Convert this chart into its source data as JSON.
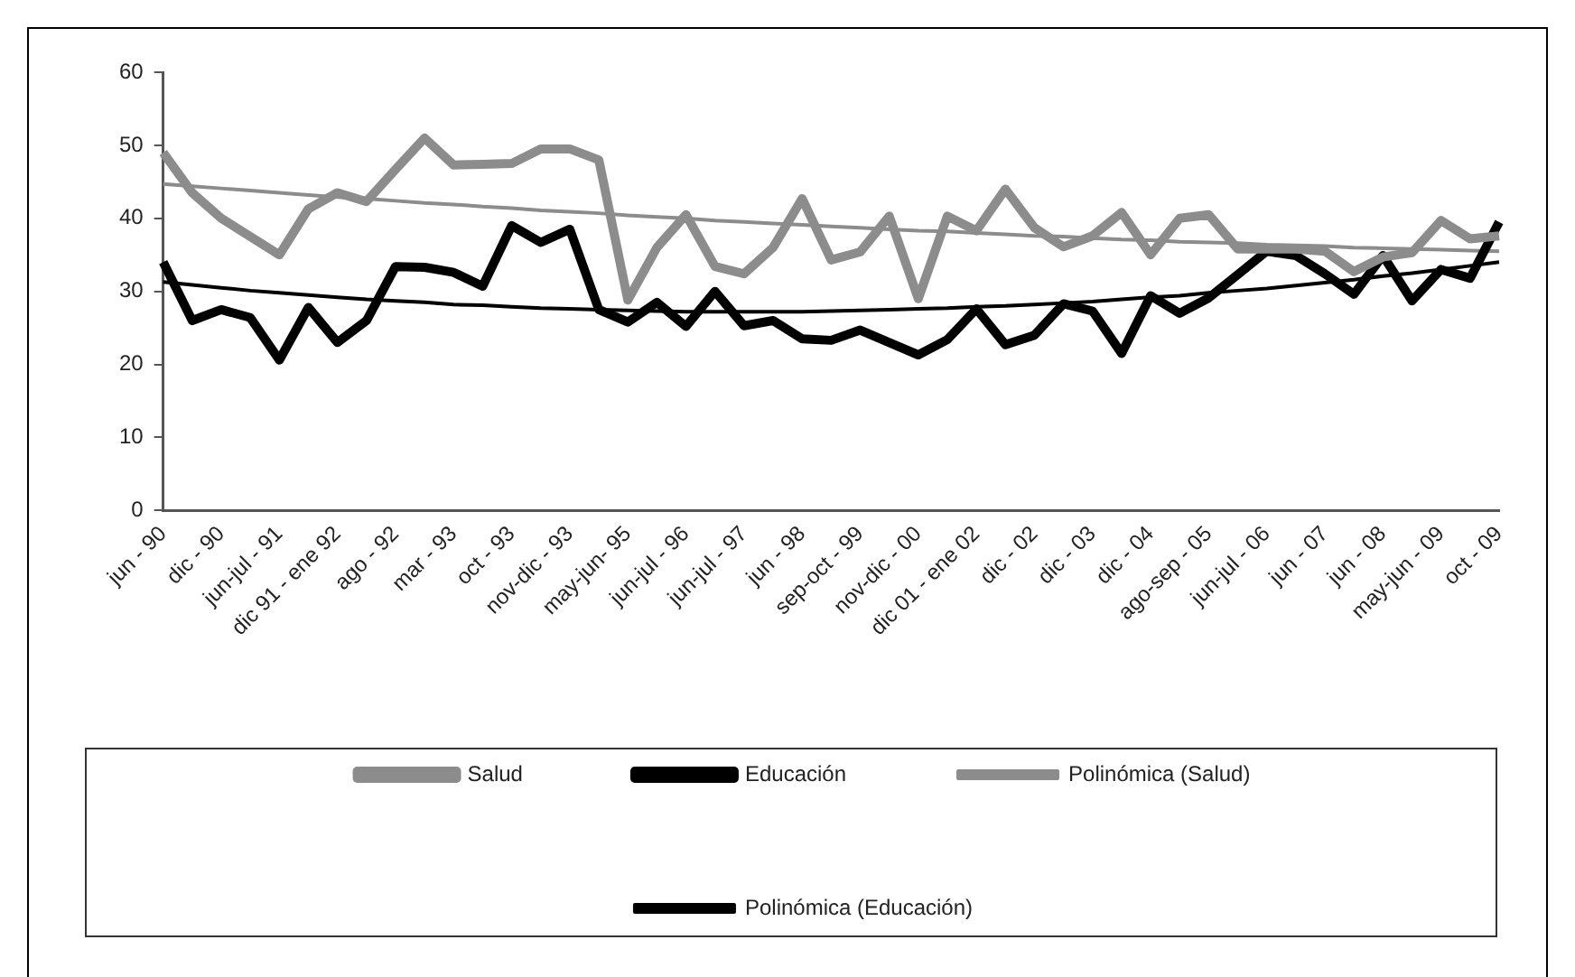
{
  "chart_data": {
    "type": "line",
    "categories": [
      "jun - 90",
      null,
      "dic - 90",
      null,
      "jun-jul - 91",
      null,
      "dic 91 - ene 92",
      null,
      "ago - 92",
      null,
      "mar - 93",
      null,
      "oct - 93",
      null,
      "nov-dic - 93",
      null,
      "may-jun- 95",
      null,
      "jun-jul - 96",
      null,
      "jun-jul - 97",
      null,
      "jun - 98",
      null,
      "sep-oct - 99",
      null,
      "nov-dic - 00",
      null,
      "dic 01 - ene 02",
      null,
      "dic - 02",
      null,
      "dic - 03",
      null,
      "dic - 04",
      null,
      "ago-sep - 05",
      null,
      "jun-jul - 06",
      null,
      "jun - 07",
      null,
      "jun - 08",
      null,
      "may-jun - 09",
      null,
      "oct - 09"
    ],
    "series": [
      {
        "name": "Salud",
        "color": "#8c8c8c",
        "values": [
          49,
          43.5,
          40,
          37.5,
          35,
          41.3,
          43.5,
          42.3,
          46.7,
          51,
          47.3,
          47.4,
          47.5,
          49.5,
          49.5,
          48,
          28.8,
          36,
          40.5,
          33.4,
          32.4,
          36,
          42.7,
          34.3,
          35.4,
          40.3,
          29,
          40.3,
          38.3,
          44,
          38.7,
          36.1,
          37.6,
          40.8,
          35,
          40,
          40.5,
          35.8,
          35.8,
          35.8,
          35.5,
          32.7,
          34.7,
          35.3,
          39.7,
          37.2,
          37.6
        ]
      },
      {
        "name": "Educación",
        "color": "#000000",
        "values": [
          34,
          26,
          27.5,
          26.4,
          20.6,
          27.8,
          23,
          26,
          33.4,
          33.3,
          32.6,
          30.7,
          39,
          36.7,
          38.5,
          27.5,
          25.8,
          28.5,
          25.2,
          30,
          25.3,
          26,
          23.5,
          23.3,
          24.7,
          23,
          21.3,
          23.4,
          27.6,
          22.7,
          24,
          28.3,
          27.3,
          21.5,
          29.4,
          27,
          29.1,
          32.3,
          35.5,
          34.9,
          32.4,
          29.6,
          34.9,
          28.7,
          33,
          31.8,
          39.5
        ]
      },
      {
        "name": "Polinómica (Salud)",
        "type": "line",
        "color": "#8c8c8c",
        "values": [
          44.7,
          44.4,
          44.1,
          43.8,
          43.5,
          43.2,
          42.9,
          42.7,
          42.4,
          42.1,
          41.9,
          41.6,
          41.4,
          41.1,
          40.9,
          40.7,
          40.4,
          40.2,
          40.0,
          39.7,
          39.5,
          39.3,
          39.1,
          38.9,
          38.7,
          38.5,
          38.3,
          38.2,
          38.0,
          37.8,
          37.6,
          37.5,
          37.3,
          37.1,
          37.0,
          36.8,
          36.7,
          36.6,
          36.4,
          36.3,
          36.2,
          36.0,
          35.9,
          35.8,
          35.7,
          35.6,
          35.5
        ]
      },
      {
        "name": "Polinómica (Educación)",
        "type": "line",
        "color": "#000000",
        "values": [
          31.3,
          30.9,
          30.5,
          30.1,
          29.8,
          29.5,
          29.2,
          28.9,
          28.7,
          28.5,
          28.2,
          28.1,
          27.9,
          27.7,
          27.6,
          27.5,
          27.4,
          27.3,
          27.2,
          27.2,
          27.2,
          27.2,
          27.2,
          27.3,
          27.4,
          27.5,
          27.6,
          27.7,
          27.9,
          28.0,
          28.2,
          28.4,
          28.6,
          28.9,
          29.2,
          29.4,
          29.8,
          30.1,
          30.4,
          30.8,
          31.2,
          31.6,
          32.1,
          32.5,
          33.0,
          33.5,
          34.0
        ]
      }
    ],
    "ylim": [
      0,
      60
    ],
    "yticks": [
      0,
      10,
      20,
      30,
      40,
      50,
      60
    ],
    "grid": false,
    "legend": "bottom",
    "marker": "none",
    "line_style": "solid"
  }
}
